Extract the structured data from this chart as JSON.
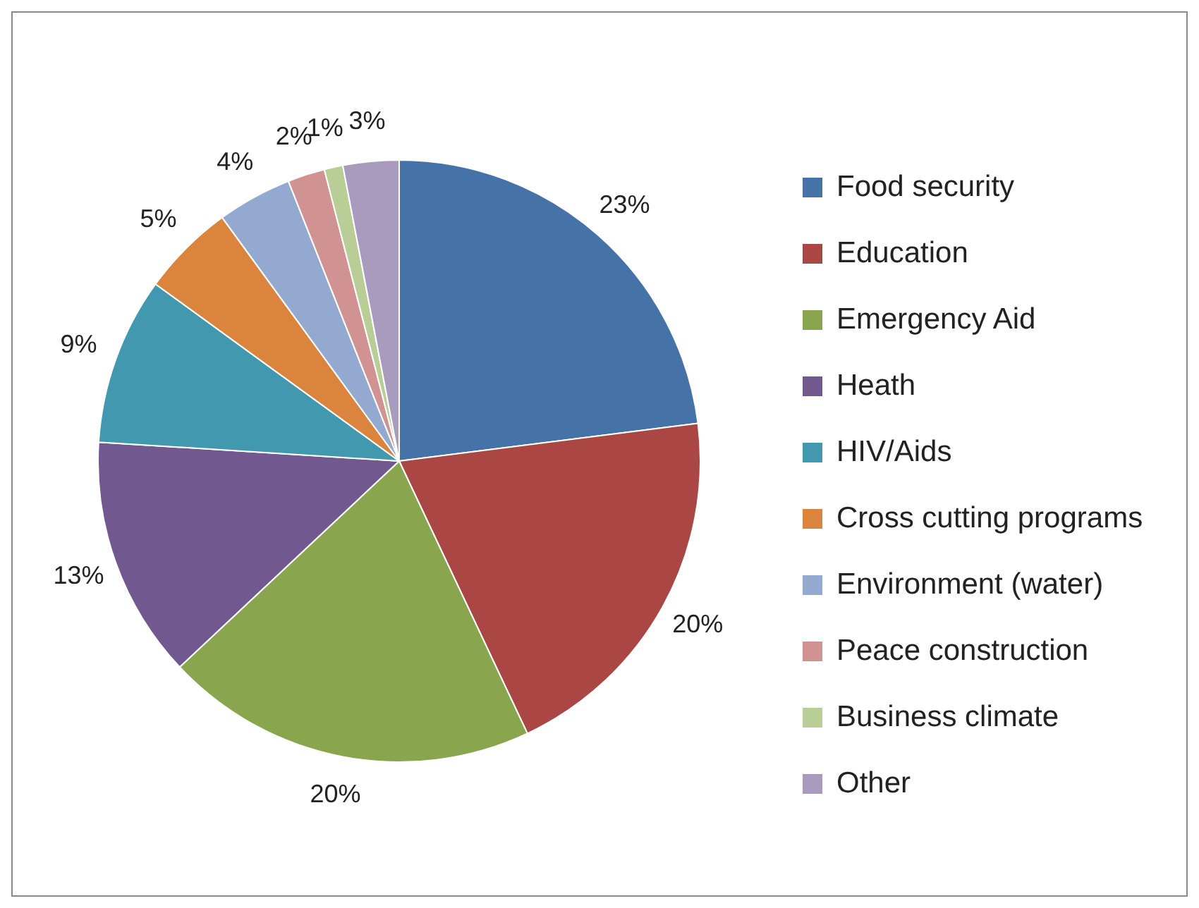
{
  "chart_data": {
    "type": "pie",
    "categories": [
      "Food security",
      "Education",
      "Emergency Aid",
      "Heath",
      "HIV/Aids",
      "Cross cutting programs",
      "Environment (water)",
      "Peace construction",
      "Business climate",
      "Other"
    ],
    "values": [
      23,
      20,
      20,
      13,
      9,
      5,
      4,
      2,
      1,
      3
    ],
    "value_labels": [
      "23%",
      "20%",
      "20%",
      "13%",
      "9%",
      "5%",
      "4%",
      "2%",
      "1%",
      "3%"
    ],
    "colors": [
      "#4572a7",
      "#aa4643",
      "#89a54e",
      "#71588f",
      "#4198af",
      "#db843d",
      "#93a9cf",
      "#d19392",
      "#b9cd96",
      "#a99bbd"
    ],
    "legend": "right"
  }
}
